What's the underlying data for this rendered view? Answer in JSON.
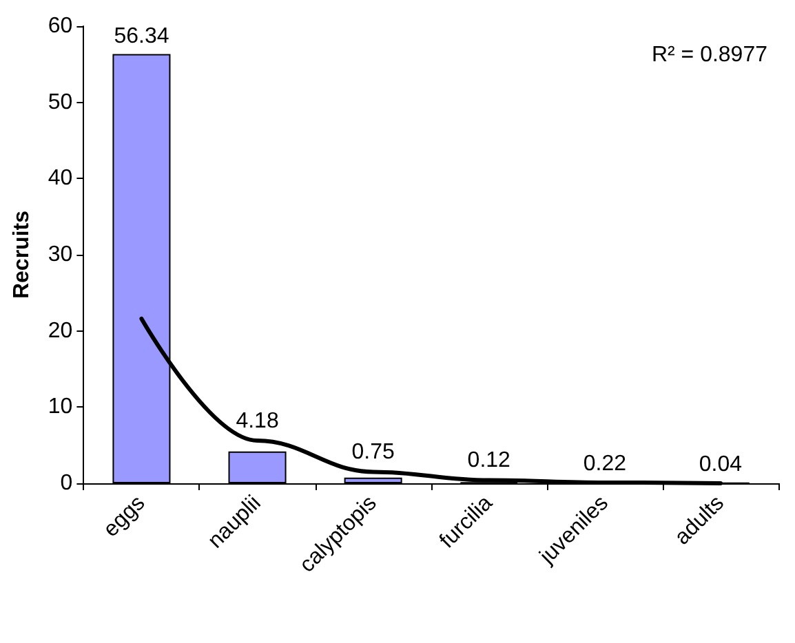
{
  "chart_data": {
    "type": "bar",
    "ylabel": "Recruits",
    "categories": [
      "eggs",
      "nauplii",
      "calyptopis",
      "furcilia",
      "juveniles",
      "adults"
    ],
    "series": [
      {
        "color": "#9999ff",
        "values": [
          56.34,
          4.18,
          0.75,
          0.12,
          0.22,
          0.04
        ],
        "value_labels": [
          "56.34",
          "4.18",
          "0.75",
          "0.12",
          "0.22",
          "0.04"
        ]
      },
      {
        "type": "line",
        "color": "#000000",
        "values": [
          21.6,
          5.6,
          1.5,
          0.4,
          0.1,
          0.0
        ],
        "marker": "none",
        "line_style": "solid"
      }
    ],
    "ylim": [
      0,
      60
    ],
    "yticks": [
      0,
      10,
      20,
      30,
      40,
      50,
      60
    ],
    "grid": false,
    "annotations": [
      "R² = 0.8977"
    ]
  }
}
